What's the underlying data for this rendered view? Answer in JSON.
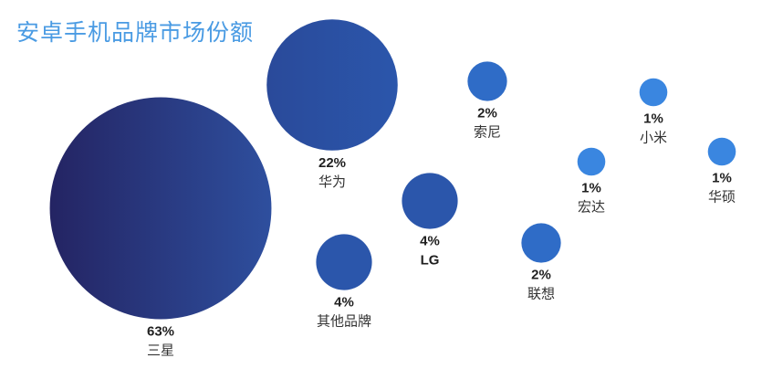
{
  "title": "安卓手机品牌市场份额",
  "chart_data": {
    "type": "bubble",
    "title": "安卓手机品牌市场份额",
    "unit": "%",
    "points": [
      {
        "label": "三星",
        "value": 63
      },
      {
        "label": "华为",
        "value": 22
      },
      {
        "label": "索尼",
        "value": 2
      },
      {
        "label": "小米",
        "value": 1
      },
      {
        "label": "宏达",
        "value": 1
      },
      {
        "label": "华硕",
        "value": 1
      },
      {
        "label": "LG",
        "value": 4
      },
      {
        "label": "联想",
        "value": 2
      },
      {
        "label": "其他品牌",
        "value": 4
      }
    ]
  },
  "colors": {
    "title": "#4a9be3",
    "large_gradient_start": "#242463",
    "large_gradient_end": "#2e4f9e",
    "medium": "#2b56ab",
    "small": "#2f6cc7",
    "tiny": "#3a86e0"
  }
}
